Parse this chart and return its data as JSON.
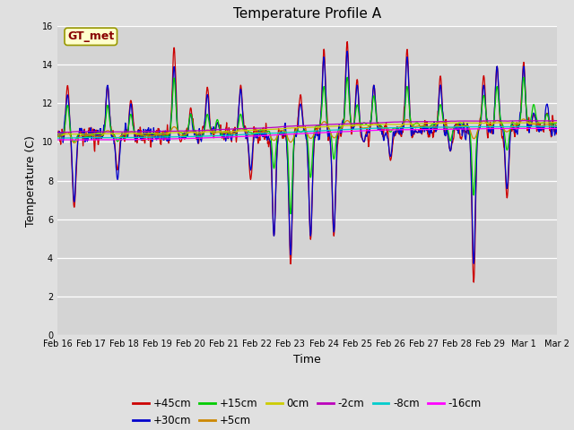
{
  "title": "Temperature Profile A",
  "xlabel": "Time",
  "ylabel": "Temperature (C)",
  "ylim": [
    0,
    16
  ],
  "yticks": [
    0,
    2,
    4,
    6,
    8,
    10,
    12,
    14,
    16
  ],
  "fig_bg_color": "#e0e0e0",
  "plot_bg_color": "#d4d4d4",
  "grid_color": "white",
  "annotation_label": "GT_met",
  "annotation_bg": "#ffffcc",
  "annotation_border": "#999900",
  "annotation_text_color": "#880000",
  "series_colors": {
    "+45cm": "#cc0000",
    "+30cm": "#0000cc",
    "+15cm": "#00cc00",
    "+5cm": "#cc8800",
    "0cm": "#cccc00",
    "-2cm": "#bb00bb",
    "-8cm": "#00cccc",
    "-16cm": "#ff00ff"
  },
  "tick_label_fontsize": 7,
  "axis_label_fontsize": 9,
  "title_fontsize": 11,
  "legend_fontsize": 8.5
}
